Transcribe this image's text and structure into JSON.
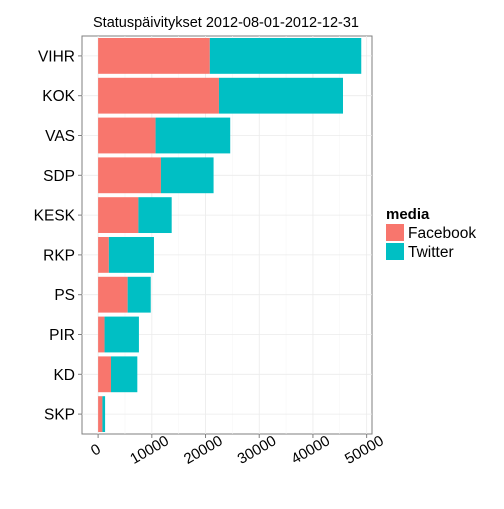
{
  "chart_data": {
    "type": "bar",
    "orientation": "horizontal",
    "stacked": true,
    "title": "Statuspäivitykset 2012-08-01-2012-12-31",
    "xlabel": "",
    "ylabel": "",
    "categories": [
      "VIHR",
      "KOK",
      "VAS",
      "SDP",
      "KESK",
      "RKP",
      "PS",
      "PIR",
      "KD",
      "SKP"
    ],
    "series": [
      {
        "name": "Facebook",
        "color": "#F8766D",
        "values": [
          20800,
          22500,
          10700,
          11700,
          7500,
          2000,
          5500,
          1200,
          2400,
          800
        ]
      },
      {
        "name": "Twitter",
        "color": "#00BFC4",
        "values": [
          28200,
          23100,
          13900,
          9800,
          6200,
          8400,
          4300,
          6400,
          4900,
          500
        ]
      }
    ],
    "xlim": [
      -3000,
      51000
    ],
    "xticks": [
      0,
      10000,
      20000,
      30000,
      40000,
      50000
    ],
    "xtick_labels": [
      "0",
      "10000",
      "20000",
      "30000",
      "40000",
      "50000"
    ],
    "grid": true,
    "legend": {
      "title": "media",
      "position": "right"
    }
  }
}
